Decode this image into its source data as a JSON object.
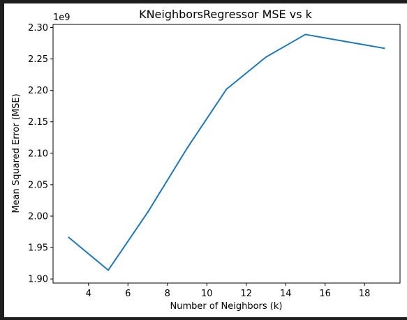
{
  "chart_data": {
    "type": "line",
    "title": "KNeighborsRegressor MSE vs k",
    "xlabel": "Number of Neighbors (k)",
    "ylabel": "Mean Squared Error (MSE)",
    "y_offset_label": "1e9",
    "x": [
      3,
      5,
      7,
      9,
      11,
      13,
      15,
      17,
      19
    ],
    "series": [
      {
        "values": [
          1.966,
          1.914,
          2.006,
          2.108,
          2.202,
          2.253,
          2.289,
          2.278,
          2.267
        ],
        "color": "#1f77b4"
      }
    ],
    "xlim": [
      2.2,
      19.8
    ],
    "ylim": [
      1.8935,
      2.305
    ],
    "xticks": [
      4,
      6,
      8,
      10,
      12,
      14,
      16,
      18
    ],
    "xtick_labels": [
      "4",
      "6",
      "8",
      "10",
      "12",
      "14",
      "16",
      "18"
    ],
    "yticks": [
      1.9,
      1.95,
      2.0,
      2.05,
      2.1,
      2.15,
      2.2,
      2.25,
      2.3
    ],
    "ytick_labels": [
      "1.90",
      "1.95",
      "2.00",
      "2.05",
      "2.10",
      "2.15",
      "2.20",
      "2.25",
      "2.30"
    ],
    "grid": false,
    "legend": "none"
  }
}
